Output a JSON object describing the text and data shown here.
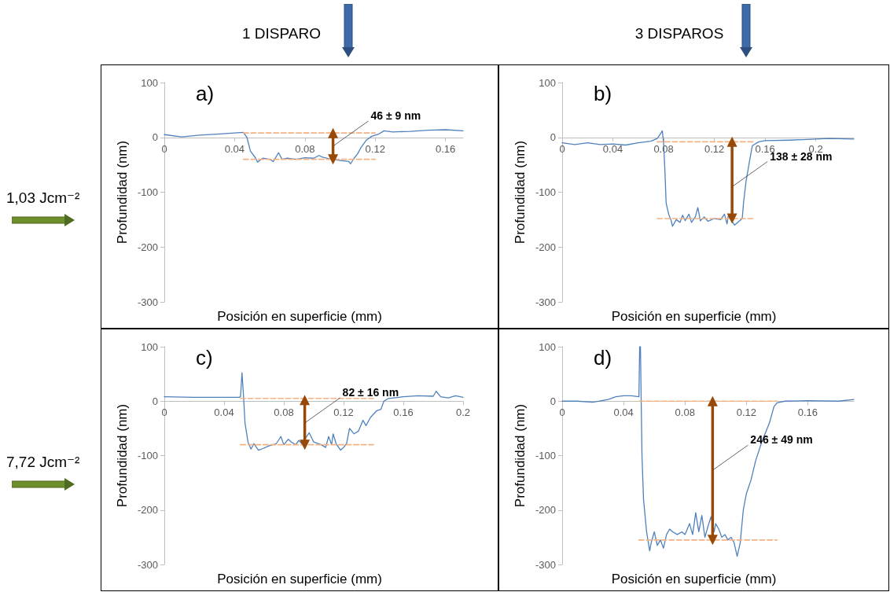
{
  "chart_data": [
    {
      "type": "line",
      "title": "a)",
      "xlabel": "Posición en superficie (mm)",
      "ylabel": "Profundidad (nm)",
      "xlim": [
        0,
        0.17
      ],
      "xticks": [
        0,
        0.04,
        0.08,
        0.12,
        0.16
      ],
      "ylim": [
        -300,
        100
      ],
      "yticks": [
        -300,
        -200,
        -100,
        0,
        100
      ],
      "grid": false,
      "marker": "none",
      "line_style": "solid",
      "annotations": [
        "1 DISPARO",
        "1,03 Jcm⁻²",
        {
          "text": "46 ± 9 nm",
          "x": 0.096,
          "y": -16
        }
      ],
      "series": [
        {
          "color": "#4f81bd",
          "x": [
            0,
            0.01,
            0.02,
            0.03,
            0.04,
            0.045,
            0.047,
            0.049,
            0.052,
            0.053,
            0.056,
            0.06,
            0.062,
            0.065,
            0.067,
            0.07,
            0.075,
            0.08,
            0.085,
            0.088,
            0.09,
            0.095,
            0.1,
            0.105,
            0.106,
            0.108,
            0.11,
            0.112,
            0.115,
            0.118,
            0.12,
            0.122,
            0.125,
            0.13,
            0.14,
            0.15,
            0.16,
            0.17
          ],
          "values": [
            5,
            1,
            4,
            6,
            8,
            9,
            0,
            -25,
            -38,
            -45,
            -38,
            -40,
            -44,
            -28,
            -40,
            -38,
            -40,
            -37,
            -38,
            -33,
            -36,
            -40,
            -42,
            -44,
            -48,
            -38,
            -30,
            -18,
            -5,
            2,
            4,
            6,
            12,
            10,
            11,
            13,
            14,
            12
          ]
        },
        {
          "color": "#f4b183",
          "line_style": "dashed",
          "x": [
            0.045,
            0.12
          ],
          "values": [
            8,
            8
          ]
        },
        {
          "color": "#f4b183",
          "line_style": "dashed",
          "x": [
            0.045,
            0.12
          ],
          "values": [
            -40,
            -40
          ]
        },
        {
          "color": "#984807",
          "marker": "triangle",
          "x": [
            0.096,
            0.096
          ],
          "values": [
            8,
            -40
          ]
        }
      ]
    },
    {
      "type": "line",
      "title": "b)",
      "xlabel": "Posición en superficie (mm)",
      "ylabel": "Profundidad (nm)",
      "xlim": [
        0,
        0.23
      ],
      "xticks": [
        0,
        0.04,
        0.08,
        0.12,
        0.16,
        0.2
      ],
      "ylim": [
        -300,
        100
      ],
      "yticks": [
        -300,
        -200,
        -100,
        0,
        100
      ],
      "grid": false,
      "marker": "none",
      "line_style": "solid",
      "annotations": [
        "3 DISPAROS",
        {
          "text": "138 ± 28 nm",
          "x": 0.134,
          "y": -90
        }
      ],
      "series": [
        {
          "color": "#4f81bd",
          "x": [
            0,
            0.01,
            0.02,
            0.03,
            0.04,
            0.05,
            0.06,
            0.07,
            0.075,
            0.078,
            0.079,
            0.08,
            0.081,
            0.082,
            0.084,
            0.086,
            0.087,
            0.09,
            0.093,
            0.095,
            0.097,
            0.1,
            0.102,
            0.105,
            0.107,
            0.109,
            0.112,
            0.115,
            0.12,
            0.125,
            0.128,
            0.13,
            0.131,
            0.136,
            0.14,
            0.142,
            0.143,
            0.145,
            0.148,
            0.15,
            0.155,
            0.16,
            0.18,
            0.2,
            0.21,
            0.23
          ],
          "values": [
            -10,
            -13,
            -10,
            -13,
            -12,
            -14,
            -10,
            -7,
            -2,
            8,
            12,
            -10,
            -60,
            -120,
            -140,
            -152,
            -162,
            -150,
            -155,
            -142,
            -152,
            -140,
            -155,
            -145,
            -128,
            -152,
            -145,
            -153,
            -148,
            -150,
            -140,
            -158,
            -143,
            -160,
            -152,
            -148,
            -120,
            -80,
            -40,
            -15,
            -8,
            -6,
            -5,
            -3,
            -2,
            -3
          ]
        },
        {
          "color": "#f4b183",
          "line_style": "dashed",
          "x": [
            0.075,
            0.152
          ],
          "values": [
            -8,
            -8
          ]
        },
        {
          "color": "#f4b183",
          "line_style": "dashed",
          "x": [
            0.075,
            0.152
          ],
          "values": [
            -148,
            -148
          ]
        },
        {
          "color": "#984807",
          "marker": "triangle",
          "x": [
            0.134,
            0.134
          ],
          "values": [
            -8,
            -148
          ]
        }
      ]
    },
    {
      "type": "line",
      "title": "c)",
      "xlabel": "Posición en superficie (mm)",
      "ylabel": "Profundidad (nm)",
      "xlim": [
        0,
        0.2
      ],
      "xticks": [
        0,
        0.04,
        0.08,
        0.12,
        0.16,
        0.2
      ],
      "ylim": [
        -300,
        100
      ],
      "yticks": [
        -300,
        -200,
        -100,
        0,
        100
      ],
      "grid": false,
      "marker": "none",
      "line_style": "solid",
      "annotations": [
        "7,72 Jcm⁻²",
        {
          "text": "82 ± 16 nm",
          "x": 0.094,
          "y": -40
        }
      ],
      "series": [
        {
          "color": "#4f81bd",
          "x": [
            0,
            0.02,
            0.04,
            0.05,
            0.051,
            0.052,
            0.053,
            0.054,
            0.056,
            0.058,
            0.06,
            0.063,
            0.066,
            0.07,
            0.075,
            0.078,
            0.08,
            0.083,
            0.085,
            0.088,
            0.09,
            0.092,
            0.097,
            0.1,
            0.105,
            0.108,
            0.11,
            0.112,
            0.113,
            0.115,
            0.118,
            0.12,
            0.122,
            0.124,
            0.127,
            0.13,
            0.133,
            0.135,
            0.138,
            0.142,
            0.145,
            0.147,
            0.15,
            0.16,
            0.17,
            0.18,
            0.182,
            0.185,
            0.19,
            0.195,
            0.2
          ],
          "values": [
            8,
            7,
            7,
            7,
            8,
            52,
            10,
            -40,
            -75,
            -88,
            -78,
            -90,
            -87,
            -82,
            -78,
            -65,
            -80,
            -70,
            -75,
            -80,
            -72,
            -78,
            -58,
            -75,
            -80,
            -85,
            -65,
            -80,
            -60,
            -78,
            -90,
            -85,
            -78,
            -50,
            -60,
            -55,
            -35,
            -45,
            -30,
            -18,
            -15,
            0,
            5,
            8,
            10,
            9,
            18,
            8,
            6,
            10,
            7
          ]
        },
        {
          "color": "#f4b183",
          "line_style": "dashed",
          "x": [
            0.051,
            0.14
          ],
          "values": [
            5,
            5
          ]
        },
        {
          "color": "#f4b183",
          "line_style": "dashed",
          "x": [
            0.051,
            0.14
          ],
          "values": [
            -80,
            -80
          ]
        },
        {
          "color": "#984807",
          "marker": "triangle",
          "x": [
            0.094,
            0.094
          ],
          "values": [
            2,
            -80
          ]
        }
      ]
    },
    {
      "type": "line",
      "title": "d)",
      "xlabel": "Posición en superficie (mm)",
      "ylabel": "Profundidad (nm)",
      "xlim": [
        0,
        0.19
      ],
      "xticks": [
        0,
        0.04,
        0.08,
        0.12,
        0.16
      ],
      "ylim": [
        -300,
        100
      ],
      "yticks": [
        -300,
        -200,
        -100,
        0,
        100
      ],
      "grid": false,
      "marker": "none",
      "line_style": "solid",
      "annotations": [
        {
          "text": "246 ± 49 nm",
          "x": 0.098,
          "y": -127
        }
      ],
      "series": [
        {
          "color": "#4f81bd",
          "x": [
            0,
            0.01,
            0.02,
            0.03,
            0.035,
            0.04,
            0.045,
            0.05,
            0.0505,
            0.051,
            0.052,
            0.053,
            0.055,
            0.057,
            0.058,
            0.06,
            0.062,
            0.064,
            0.066,
            0.068,
            0.07,
            0.072,
            0.075,
            0.078,
            0.08,
            0.083,
            0.085,
            0.087,
            0.089,
            0.091,
            0.093,
            0.095,
            0.097,
            0.099,
            0.1,
            0.102,
            0.104,
            0.106,
            0.108,
            0.11,
            0.112,
            0.114,
            0.116,
            0.118,
            0.12,
            0.123,
            0.126,
            0.13,
            0.135,
            0.138,
            0.14,
            0.145,
            0.16,
            0.18,
            0.19
          ],
          "values": [
            0,
            0,
            -2,
            3,
            8,
            10,
            10,
            8,
            100,
            100,
            -100,
            -180,
            -240,
            -275,
            -260,
            -240,
            -265,
            -255,
            -270,
            -245,
            -235,
            -240,
            -245,
            -240,
            -245,
            -225,
            -245,
            -205,
            -240,
            -210,
            -250,
            -230,
            -212,
            -240,
            -225,
            -235,
            -250,
            -245,
            -255,
            -250,
            -260,
            -285,
            -260,
            -200,
            -170,
            -145,
            -110,
            -75,
            -40,
            -10,
            -3,
            0,
            1,
            0,
            3
          ]
        },
        {
          "color": "#f4b183",
          "line_style": "dashed",
          "x": [
            0.05,
            0.14
          ],
          "values": [
            0,
            0
          ]
        },
        {
          "color": "#f4b183",
          "line_style": "dashed",
          "x": [
            0.05,
            0.14
          ],
          "values": [
            -255,
            -255
          ]
        },
        {
          "color": "#984807",
          "marker": "triangle",
          "x": [
            0.098,
            0.098
          ],
          "values": [
            0,
            -255
          ]
        }
      ]
    }
  ]
}
